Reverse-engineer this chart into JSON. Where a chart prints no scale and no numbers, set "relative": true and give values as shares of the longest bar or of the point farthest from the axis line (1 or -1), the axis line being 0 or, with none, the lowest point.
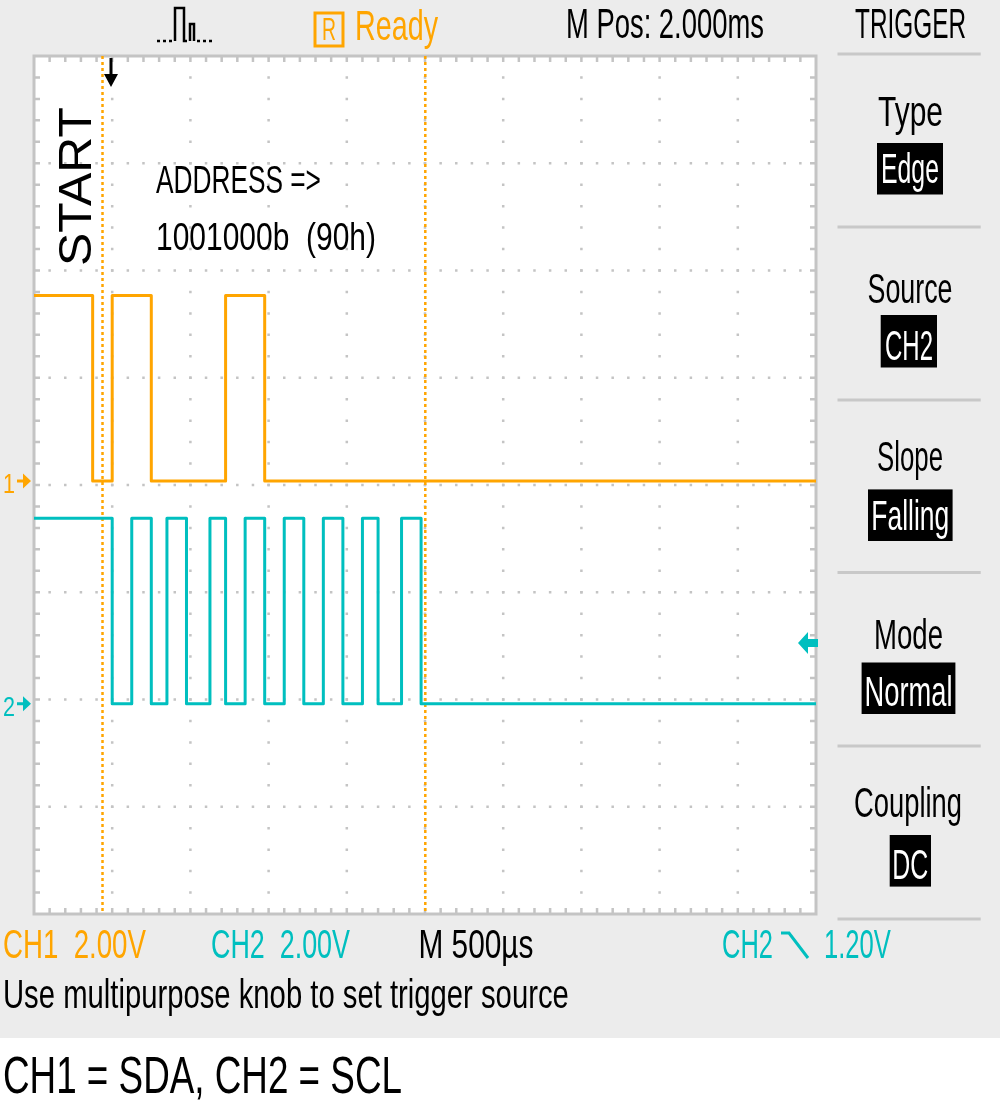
{
  "chart_data": {
    "type": "step",
    "relative": true,
    "categories": [
      null,
      null,
      null,
      null,
      null,
      null,
      null,
      null,
      null,
      null,
      null,
      null,
      null,
      null,
      null,
      null,
      null,
      null,
      null,
      null,
      null,
      null,
      null,
      null,
      null,
      null,
      null,
      null,
      null,
      null,
      null,
      null,
      null,
      null,
      null,
      null,
      null,
      null,
      null,
      null,
      null,
      null,
      null,
      null,
      null,
      null,
      null,
      null,
      null,
      null,
      null,
      null,
      null,
      null,
      null,
      null,
      null,
      null,
      null,
      null,
      null,
      null,
      null,
      null,
      null,
      null,
      null,
      null,
      null,
      null,
      null,
      null,
      null,
      null,
      null,
      null,
      null,
      null,
      null,
      null,
      null,
      null,
      null,
      null,
      null,
      null,
      null,
      null,
      null,
      null,
      null,
      null,
      null,
      null,
      null,
      null,
      null,
      null,
      null,
      null,
      null,
      null,
      null,
      null,
      null,
      null,
      null,
      null,
      null,
      null,
      null,
      null,
      null,
      null,
      null,
      null,
      null,
      null,
      null,
      null,
      null,
      null,
      null,
      null,
      null,
      null,
      null,
      null,
      null,
      null,
      null,
      null,
      null,
      null,
      null,
      null,
      null,
      null,
      null,
      null,
      null,
      null,
      null,
      null,
      null,
      null,
      null,
      null,
      null,
      null,
      null,
      null,
      null,
      null,
      null,
      null,
      null,
      null,
      null,
      null,
      null,
      null,
      null,
      null,
      null,
      null,
      null,
      null,
      null,
      null,
      null,
      null,
      null,
      null,
      null,
      null,
      null,
      null,
      null,
      null,
      null,
      null,
      null,
      null,
      null,
      null,
      null,
      null,
      null,
      null,
      null,
      null,
      null,
      null,
      null,
      null,
      null,
      null,
      null,
      null,
      null
    ],
    "series": [
      {
        "name": "1",
        "color": "#ffa500",
        "values": [
          1,
          1,
          1,
          1,
          1,
          1,
          1,
          1,
          1,
          1,
          1,
          1,
          1,
          1,
          1,
          0.7,
          0.7,
          0.7,
          0.7,
          0.7,
          1,
          1,
          1,
          1,
          1,
          1,
          1,
          1,
          1,
          1,
          0.7,
          0.7,
          0.7,
          0.7,
          0.7,
          0.7,
          0.7,
          0.7,
          0.7,
          0.7,
          0.7,
          0.7,
          0.7,
          0.7,
          0.7,
          0.7,
          0.7,
          0.7,
          0.7,
          1,
          1,
          1,
          1,
          1,
          1,
          1,
          1,
          1,
          1,
          0.7,
          0.7,
          0.7,
          0.7,
          0.7,
          0.7,
          0.7,
          0.7,
          0.7,
          0.7,
          0.7,
          0.7,
          0.7,
          0.7,
          0.7,
          0.7,
          0.7,
          0.7,
          0.7,
          0.7,
          0.7,
          0.7,
          0.7,
          0.7,
          0.7,
          0.7,
          0.7,
          0.7,
          0.7,
          0.7,
          0.7,
          0.7,
          0.7,
          0.7,
          0.7,
          0.7,
          0.7,
          0.7,
          0.7,
          0.7,
          0.7,
          0.7,
          0.7,
          0.7,
          0.7,
          0.7,
          0.7,
          0.7,
          0.7,
          0.7,
          0.7,
          0.7,
          0.7,
          0.7,
          0.7,
          0.7,
          0.7,
          0.7,
          0.7,
          0.7,
          0.7,
          0.7,
          0.7,
          0.7,
          0.7,
          0.7,
          0.7,
          0.7,
          0.7,
          0.7,
          0.7,
          0.7,
          0.7,
          0.7,
          0.7,
          0.7,
          0.7,
          0.7,
          0.7,
          0.7,
          0.7,
          0.7,
          0.7,
          0.7,
          0.7,
          0.7,
          0.7,
          0.7,
          0.7,
          0.7,
          0.7,
          0.7,
          0.7,
          0.7,
          0.7,
          0.7,
          0.7,
          0.7,
          0.7,
          0.7,
          0.7,
          0.7,
          0.7,
          0.7,
          0.7,
          0.7,
          0.7,
          0.7,
          0.7,
          0.7,
          0.7,
          0.7,
          0.7,
          0.7,
          0.7,
          0.7,
          0.7,
          0.7,
          0.7,
          0.7,
          0.7,
          0.7,
          0.7,
          0.7,
          0.7,
          0.7,
          0.7,
          0.7,
          0.7,
          0.7,
          0.7,
          0.7,
          0.7,
          0.7,
          0.7,
          0.7,
          0.7,
          0.7,
          0.7,
          0.7,
          0.7,
          0.7
        ]
      },
      {
        "name": "2",
        "color": "#00bfbf",
        "values": [
          0.64,
          0.64,
          0.64,
          0.64,
          0.64,
          0.64,
          0.64,
          0.64,
          0.64,
          0.64,
          0.64,
          0.64,
          0.64,
          0.64,
          0.64,
          0.64,
          0.64,
          0.64,
          0.64,
          0.64,
          0.34,
          0.34,
          0.34,
          0.34,
          0.34,
          0.64,
          0.64,
          0.64,
          0.64,
          0.64,
          0.34,
          0.34,
          0.34,
          0.34,
          0.64,
          0.64,
          0.64,
          0.64,
          0.64,
          0.34,
          0.34,
          0.34,
          0.34,
          0.34,
          0.34,
          0.64,
          0.64,
          0.64,
          0.64,
          0.34,
          0.34,
          0.34,
          0.34,
          0.34,
          0.64,
          0.64,
          0.64,
          0.64,
          0.64,
          0.34,
          0.34,
          0.34,
          0.34,
          0.34,
          0.64,
          0.64,
          0.64,
          0.64,
          0.64,
          0.34,
          0.34,
          0.34,
          0.34,
          0.34,
          0.64,
          0.64,
          0.64,
          0.64,
          0.64,
          0.34,
          0.34,
          0.34,
          0.34,
          0.34,
          0.64,
          0.64,
          0.64,
          0.64,
          0.34,
          0.34,
          0.34,
          0.34,
          0.34,
          0.34,
          0.64,
          0.64,
          0.64,
          0.64,
          0.64,
          0.34,
          0.34,
          0.34,
          0.34,
          0.34,
          0.34,
          0.34,
          0.34,
          0.34,
          0.34,
          0.34,
          0.34,
          0.34,
          0.34,
          0.34,
          0.34,
          0.34,
          0.34,
          0.34,
          0.34,
          0.34,
          0.34,
          0.34,
          0.34,
          0.34,
          0.34,
          0.34,
          0.34,
          0.34,
          0.34,
          0.34,
          0.34,
          0.34,
          0.34,
          0.34,
          0.34,
          0.34,
          0.34,
          0.34,
          0.34,
          0.34,
          0.34,
          0.34,
          0.34,
          0.34,
          0.34,
          0.34,
          0.34,
          0.34,
          0.34,
          0.34,
          0.34,
          0.34,
          0.34,
          0.34,
          0.34,
          0.34,
          0.34,
          0.34,
          0.34,
          0.34,
          0.34,
          0.34,
          0.34,
          0.34,
          0.34,
          0.34,
          0.34,
          0.34,
          0.34,
          0.34,
          0.34,
          0.34,
          0.34,
          0.34,
          0.34,
          0.34,
          0.34,
          0.34,
          0.34,
          0.34,
          0.34,
          0.34,
          0.34,
          0.34,
          0.34,
          0.34,
          0.34,
          0.34,
          0.34,
          0.34,
          0.34,
          0.34,
          0.34,
          0.34,
          0.34,
          0.34,
          0.34,
          0.34,
          0.34,
          0.34,
          0.34
        ]
      }
    ],
    "annotations": [
      "START",
      "ADDRESS =>",
      "1001000b  (90h)",
      "R",
      "Ready",
      "M Pos: 2.000ms",
      "TRIGGER",
      "Type",
      "Edge",
      "Source",
      "CH2",
      "Slope",
      "Falling",
      "Mode",
      "Normal",
      "Coupling",
      "DC",
      "CH1  2.00V",
      "CH2  2.00V",
      "M 500µs",
      "CH2",
      "1.20V",
      "Use multipurpose knob to set trigger source",
      "CH1 = SDA, CH2 = SCL"
    ],
    "legend": "left",
    "grid": true,
    "tick_labels": false,
    "line_style": "solid"
  }
}
